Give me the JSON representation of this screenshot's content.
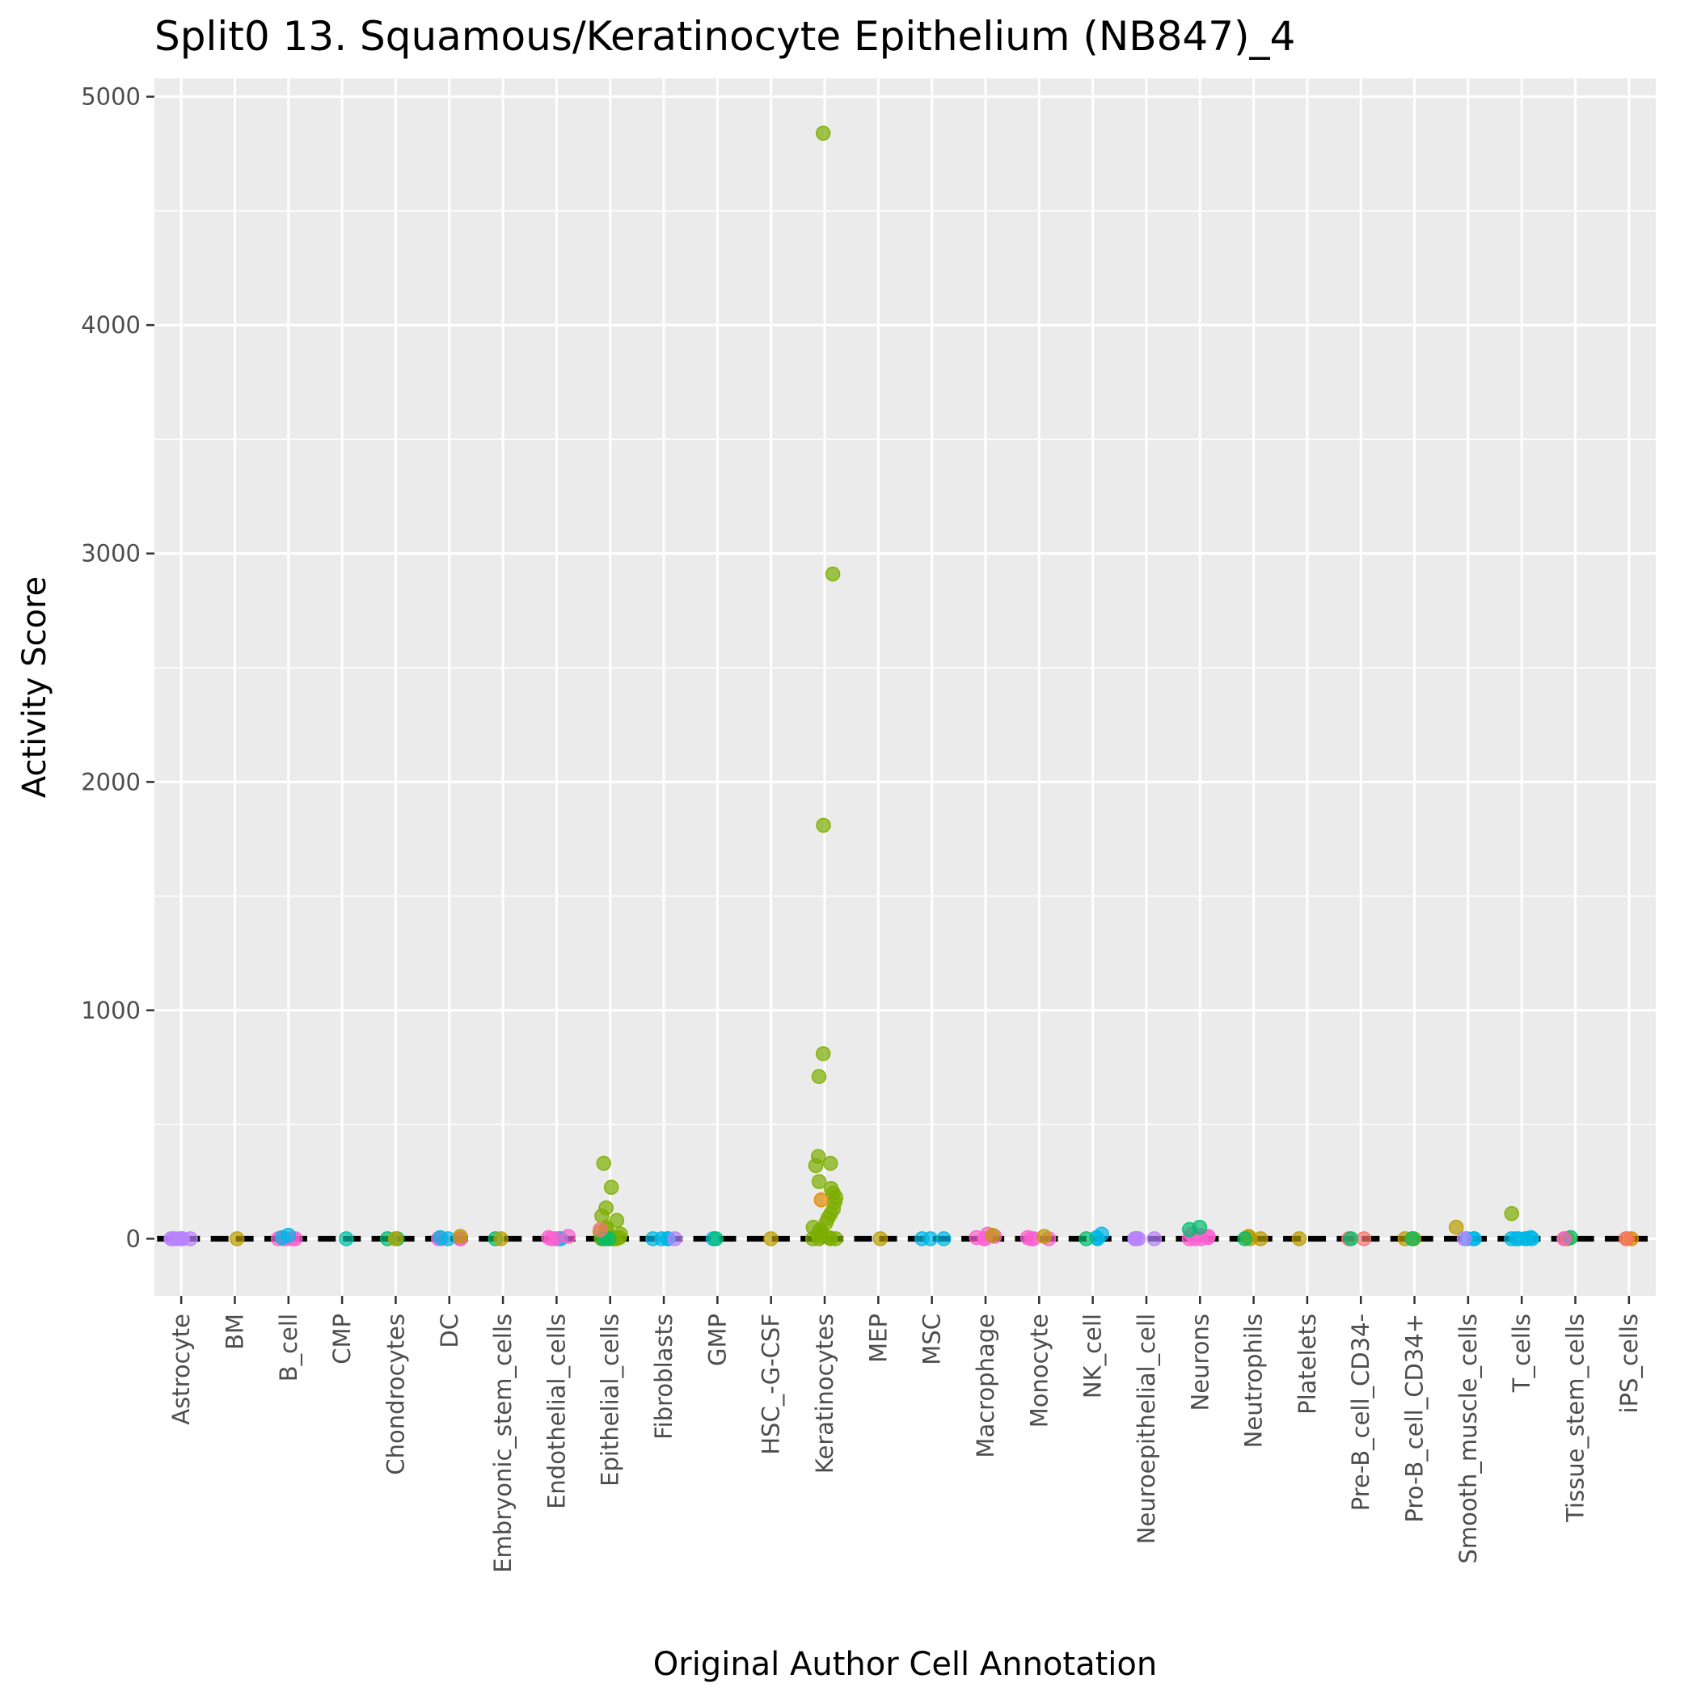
{
  "chart_data": {
    "type": "scatter",
    "title": "Split0 13. Squamous/Keratinocyte Epithelium (NB847)_4",
    "xlabel": "Original Author Cell Annotation",
    "ylabel": "Activity Score",
    "ylim": [
      -250,
      5080
    ],
    "yticks": [
      0,
      1000,
      2000,
      3000,
      4000,
      5000
    ],
    "grid": true,
    "legend": "none",
    "categories": [
      "Astrocyte",
      "BM",
      "B_cell",
      "CMP",
      "Chondrocytes",
      "DC",
      "Embryonic_stem_cells",
      "Endothelial_cells",
      "Epithelial_cells",
      "Fibroblasts",
      "GMP",
      "HSC_-G-CSF",
      "Keratinocytes",
      "MEP",
      "MSC",
      "Macrophage",
      "Monocyte",
      "NK_cell",
      "Neuroepithelial_cell",
      "Neurons",
      "Neutrophils",
      "Platelets",
      "Pre-B_cell_CD34-",
      "Pro-B_cell_CD34+",
      "Smooth_muscle_cells",
      "T_cells",
      "Tissue_stem_cells",
      "iPS_cells"
    ],
    "median_line": {
      "color": "#000000",
      "style": "dashed",
      "values": [
        0,
        0,
        0,
        0,
        0,
        0,
        0,
        0,
        0,
        0,
        0,
        0,
        0,
        0,
        0,
        0,
        0,
        0,
        0,
        0,
        0,
        0,
        0,
        0,
        0,
        0,
        0,
        0
      ]
    },
    "points": [
      {
        "category": "Astrocyte",
        "color": "#b983ff",
        "values": [
          0,
          0,
          0,
          0,
          0,
          0,
          0,
          0
        ]
      },
      {
        "category": "BM",
        "color": "#bb9d00",
        "values": [
          0
        ]
      },
      {
        "category": "B_cell",
        "color": "#fd61d1",
        "values": [
          0,
          0,
          0,
          0,
          0
        ]
      },
      {
        "category": "B_cell",
        "color": "#00b8e5",
        "values": [
          15,
          5
        ]
      },
      {
        "category": "CMP",
        "color": "#00c1a7",
        "values": [
          0
        ]
      },
      {
        "category": "Chondrocytes",
        "color": "#00be6c",
        "values": [
          0,
          0
        ]
      },
      {
        "category": "Chondrocytes",
        "color": "#bb9d00",
        "values": [
          0
        ]
      },
      {
        "category": "DC",
        "color": "#fd61d1",
        "values": [
          0,
          0,
          0,
          0
        ]
      },
      {
        "category": "DC",
        "color": "#00b8e5",
        "values": [
          5,
          0
        ]
      },
      {
        "category": "DC",
        "color": "#bb9d00",
        "values": [
          10
        ]
      },
      {
        "category": "Embryonic_stem_cells",
        "color": "#00be6c",
        "values": [
          0
        ]
      },
      {
        "category": "Embryonic_stem_cells",
        "color": "#bb9d00",
        "values": [
          0
        ]
      },
      {
        "category": "Endothelial_cells",
        "color": "#00b8e5",
        "values": [
          0,
          0
        ]
      },
      {
        "category": "Endothelial_cells",
        "color": "#fd61d1",
        "values": [
          0,
          5,
          10,
          0
        ]
      },
      {
        "category": "Epithelial_cells",
        "color": "#7cae00",
        "values": [
          330,
          225,
          135,
          100,
          80,
          50,
          40,
          30,
          20,
          10,
          5,
          0,
          0,
          0,
          0,
          0,
          0,
          0
        ]
      },
      {
        "category": "Epithelial_cells",
        "color": "#00be6c",
        "values": [
          0,
          0
        ]
      },
      {
        "category": "Epithelial_cells",
        "color": "#f8766d",
        "values": [
          40
        ]
      },
      {
        "category": "Fibroblasts",
        "color": "#00b8e5",
        "values": [
          0,
          0,
          0,
          0
        ]
      },
      {
        "category": "Fibroblasts",
        "color": "#b983ff",
        "values": [
          0
        ]
      },
      {
        "category": "GMP",
        "color": "#00b8e5",
        "values": [
          0
        ]
      },
      {
        "category": "GMP",
        "color": "#00be6c",
        "values": [
          0
        ]
      },
      {
        "category": "HSC_-G-CSF",
        "color": "#bb9d00",
        "values": [
          0
        ]
      },
      {
        "category": "Keratinocytes",
        "color": "#7cae00",
        "values": [
          4840,
          2910,
          1810,
          810,
          710,
          360,
          330,
          320,
          250,
          220,
          200,
          180,
          160,
          130,
          110,
          90,
          70,
          50,
          40,
          30,
          20,
          10,
          5,
          0,
          0,
          0,
          0
        ]
      },
      {
        "category": "Keratinocytes",
        "color": "#e18a00",
        "values": [
          170
        ]
      },
      {
        "category": "MEP",
        "color": "#bb9d00",
        "values": [
          0
        ]
      },
      {
        "category": "MSC",
        "color": "#00b8e5",
        "values": [
          0,
          0,
          0
        ]
      },
      {
        "category": "Macrophage",
        "color": "#fd61d1",
        "values": [
          0,
          10,
          20,
          0,
          5
        ]
      },
      {
        "category": "Macrophage",
        "color": "#bb9d00",
        "values": [
          15
        ]
      },
      {
        "category": "Monocyte",
        "color": "#fd61d1",
        "values": [
          0,
          0,
          5,
          0
        ]
      },
      {
        "category": "Monocyte",
        "color": "#bb9d00",
        "values": [
          10
        ]
      },
      {
        "category": "NK_cell",
        "color": "#00b8e5",
        "values": [
          0,
          5,
          20
        ]
      },
      {
        "category": "NK_cell",
        "color": "#00be6c",
        "values": [
          0
        ]
      },
      {
        "category": "Neuroepithelial_cell",
        "color": "#b983ff",
        "values": [
          0,
          0,
          0,
          0,
          0
        ]
      },
      {
        "category": "Neurons",
        "color": "#fd61d1",
        "values": [
          0,
          5,
          10,
          20,
          15,
          0,
          0
        ]
      },
      {
        "category": "Neurons",
        "color": "#00be6c",
        "values": [
          50,
          40
        ]
      },
      {
        "category": "Neutrophils",
        "color": "#bb9d00",
        "values": [
          0,
          5,
          10,
          0
        ]
      },
      {
        "category": "Neutrophils",
        "color": "#00be6c",
        "values": [
          0
        ]
      },
      {
        "category": "Platelets",
        "color": "#bb9d00",
        "values": [
          0
        ]
      },
      {
        "category": "Pre-B_cell_CD34-",
        "color": "#f8766d",
        "values": [
          0,
          0
        ]
      },
      {
        "category": "Pre-B_cell_CD34-",
        "color": "#00be6c",
        "values": [
          0
        ]
      },
      {
        "category": "Pro-B_cell_CD34+",
        "color": "#bb9d00",
        "values": [
          0,
          0,
          0
        ]
      },
      {
        "category": "Pro-B_cell_CD34+",
        "color": "#00be6c",
        "values": [
          0
        ]
      },
      {
        "category": "Smooth_muscle_cells",
        "color": "#bb9d00",
        "values": [
          50
        ]
      },
      {
        "category": "Smooth_muscle_cells",
        "color": "#00b8e5",
        "values": [
          0,
          0,
          0
        ]
      },
      {
        "category": "Smooth_muscle_cells",
        "color": "#b983ff",
        "values": [
          0
        ]
      },
      {
        "category": "T_cells",
        "color": "#00b8e5",
        "values": [
          0,
          0,
          0,
          0,
          0,
          0,
          5
        ]
      },
      {
        "category": "T_cells",
        "color": "#7cae00",
        "values": [
          110
        ]
      },
      {
        "category": "Tissue_stem_cells",
        "color": "#bb9d00",
        "values": [
          0,
          0
        ]
      },
      {
        "category": "Tissue_stem_cells",
        "color": "#00be6c",
        "values": [
          5
        ]
      },
      {
        "category": "Tissue_stem_cells",
        "color": "#fd61d1",
        "values": [
          0
        ]
      },
      {
        "category": "iPS_cells",
        "color": "#e18a00",
        "values": [
          0,
          0
        ]
      },
      {
        "category": "iPS_cells",
        "color": "#f8766d",
        "values": [
          0
        ]
      }
    ],
    "colors": {
      "panel": "#ebebeb",
      "grid": "#ffffff",
      "text": "#4d4d4d"
    }
  }
}
